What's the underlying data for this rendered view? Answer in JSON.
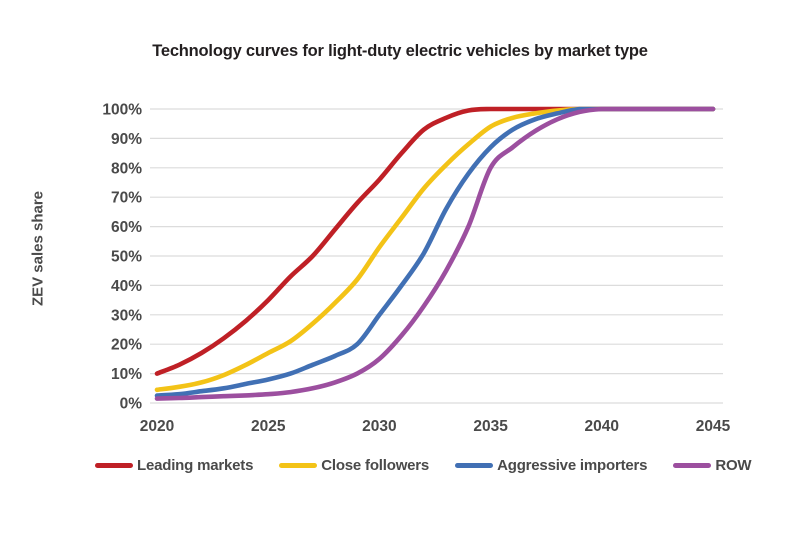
{
  "title": "Technology curves for light-duty electric vehicles by market type",
  "y_axis_label": "ZEV sales share",
  "grid_color": "#dcdcdc",
  "text_color": "#4a4a4a",
  "chart_data": {
    "type": "line",
    "x": [
      2020,
      2021,
      2022,
      2023,
      2024,
      2025,
      2026,
      2027,
      2028,
      2029,
      2030,
      2031,
      2032,
      2033,
      2034,
      2035,
      2036,
      2037,
      2038,
      2039,
      2040,
      2041,
      2042,
      2043,
      2044,
      2045
    ],
    "x_tick_labels": [
      "2020",
      "2025",
      "2030",
      "2035",
      "2040",
      "2045"
    ],
    "x_tick_years": [
      2020,
      2025,
      2030,
      2035,
      2040,
      2045
    ],
    "y_tick_labels": [
      "0%",
      "10%",
      "20%",
      "30%",
      "40%",
      "50%",
      "60%",
      "70%",
      "80%",
      "90%",
      "100%"
    ],
    "y_tick_values": [
      0,
      10,
      20,
      30,
      40,
      50,
      60,
      70,
      80,
      90,
      100
    ],
    "ylabel": "ZEV sales share",
    "ylim": [
      0,
      100
    ],
    "xlim": [
      2020,
      2045
    ],
    "grid": "horizontal",
    "legend_position": "bottom",
    "series": [
      {
        "name": "Leading markets",
        "color": "#bf2026",
        "values": [
          10,
          13,
          17,
          22,
          28,
          35,
          43,
          50,
          59,
          68,
          76,
          85,
          93,
          97,
          99.5,
          100,
          100,
          100,
          100,
          100,
          100,
          100,
          100,
          100,
          100,
          100
        ]
      },
      {
        "name": "Close followers",
        "color": "#f3c317",
        "values": [
          4.5,
          5.5,
          7,
          9.5,
          13,
          17,
          21,
          27,
          34,
          42,
          53,
          63,
          73,
          81,
          88,
          94,
          97,
          98.5,
          99.5,
          100,
          100,
          100,
          100,
          100,
          100,
          100
        ]
      },
      {
        "name": "Aggressive importers",
        "color": "#4170b4",
        "values": [
          2.5,
          3,
          4,
          5,
          6.5,
          8,
          10,
          13,
          16,
          20,
          30,
          40,
          51,
          66,
          78,
          87,
          93,
          96.5,
          98.5,
          100,
          100,
          100,
          100,
          100,
          100,
          100
        ]
      },
      {
        "name": "ROW",
        "color": "#9c4f9f",
        "values": [
          1.5,
          1.7,
          2,
          2.3,
          2.6,
          3,
          3.7,
          5,
          7,
          10,
          15,
          23,
          33,
          45,
          60,
          80,
          87,
          92.5,
          96.5,
          99,
          100,
          100,
          100,
          100,
          100,
          100
        ]
      }
    ]
  }
}
